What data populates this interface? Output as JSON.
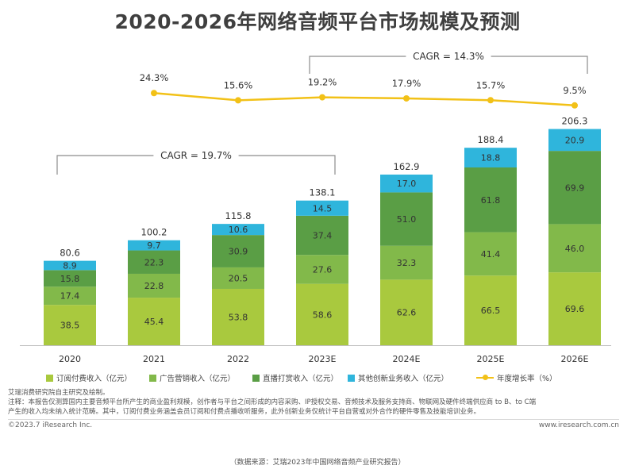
{
  "title": "2020-2026年网络音频平台市场规模及预测",
  "chart_data": {
    "type": "bar",
    "stacked": true,
    "combo_line": true,
    "categories": [
      "2020",
      "2021",
      "2022",
      "2023E",
      "2024E",
      "2025E",
      "2026E"
    ],
    "series": [
      {
        "name": "订阅付费收入（亿元）",
        "color": "#a9c93e",
        "values": [
          38.5,
          45.4,
          53.8,
          58.6,
          62.6,
          66.5,
          69.6
        ]
      },
      {
        "name": "广告营销收入（亿元）",
        "color": "#82b94a",
        "values": [
          17.4,
          22.8,
          20.5,
          27.6,
          32.3,
          41.4,
          46.0
        ]
      },
      {
        "name": "直播打赏收入（亿元）",
        "color": "#5a9e45",
        "values": [
          15.8,
          22.3,
          30.9,
          37.4,
          51.0,
          61.8,
          69.9
        ]
      },
      {
        "name": "其他创新业务收入（亿元）",
        "color": "#2fb5dc",
        "values": [
          8.9,
          9.7,
          10.6,
          14.5,
          17.0,
          18.8,
          20.9
        ]
      }
    ],
    "totals": [
      80.6,
      100.2,
      115.8,
      138.1,
      162.9,
      188.4,
      206.3
    ],
    "line_series": {
      "name": "年度增长率（%）",
      "color": "#f2c117",
      "labels": [
        "",
        "24.3%",
        "15.6%",
        "19.2%",
        "17.9%",
        "15.7%",
        "9.5%"
      ],
      "values": [
        null,
        24.3,
        15.6,
        19.2,
        17.9,
        15.7,
        9.5
      ]
    },
    "annotations": [
      {
        "text": "CAGR = 19.7%",
        "from": "2020",
        "to": "2023E"
      },
      {
        "text": "CAGR = 14.3%",
        "from": "2023E",
        "to": "2026E"
      }
    ],
    "ylim": [
      0,
      220
    ],
    "xlabel": "",
    "ylabel": "",
    "legend_position": "bottom",
    "grid": false
  },
  "notes": [
    "艾瑞消费研究院自主研究及绘制。",
    "注释：本报告仅测算国内主要音频平台所产生的商业盈利规模，创作者与平台之间形成的内容采购、IP授权交易、音频技术及服务支持商、物联网及硬件终端供应商 to B、to C端",
    "产生的收入均未纳入统计范畴。其中，订阅付费业务涵盖会员订阅和付费点播收听服务，此外创新业务仅统计平台自营或对外合作的硬件零售及技能培训业务。"
  ],
  "copyright": "©2023.7 iResearch Inc.",
  "website": "www.iresearch.com.cn",
  "source": "（数据来源：艾瑞2023年中国网络音频产业研究报告）"
}
